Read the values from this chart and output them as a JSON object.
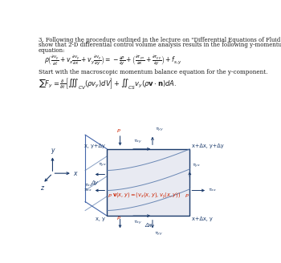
{
  "bg_color": "#ffffff",
  "text_color": "#1a1a1a",
  "blue_color": "#1a3a6b",
  "red_color": "#cc2200",
  "box_fill": "#e8eaf2",
  "title_lines": [
    "3. Following the procedure outlined in the lecture on \"Differential Equations of Fluid Flow\",",
    "show that 2-D differential control volume analysis results in the following y-momentum",
    "equation:"
  ],
  "eq1": "$\\rho\\left(\\frac{\\partial v_y}{\\partial t}+v_x\\frac{\\partial v_y}{\\partial x}+v_y\\frac{\\partial v_y}{\\partial y}\\right)=-\\frac{\\partial P}{\\partial y}+\\left(\\frac{\\partial \\tau_{yx}}{\\partial x}+\\frac{\\partial \\tau_{yy}}{\\partial y}\\right)+f_{s,y}$",
  "prompt_text": "Start with the macroscopic momentum balance equation for the y-component.",
  "eq2": "$\\sum F_y = \\frac{\\partial}{\\partial t}\\left[\\iiint_{CV}(\\rho v_y)dV\\right] + \\iint_{CS} v_y(\\rho \\mathbf{v}\\cdot\\mathbf{n})dA.$",
  "corner_tl": "x, y+Δy",
  "corner_tr": "x+Δx, y+Δy",
  "corner_bl": "x, y",
  "corner_br": "x+Δx, y",
  "delta_y": "Δy",
  "delta_x": "Δx",
  "velocity_eq": "$\\mathbf{v}(x,y) = (v_x(x,y), v_y(x,y))$",
  "bx": 0.33,
  "by": 0.09,
  "bw": 0.38,
  "bh": 0.33
}
